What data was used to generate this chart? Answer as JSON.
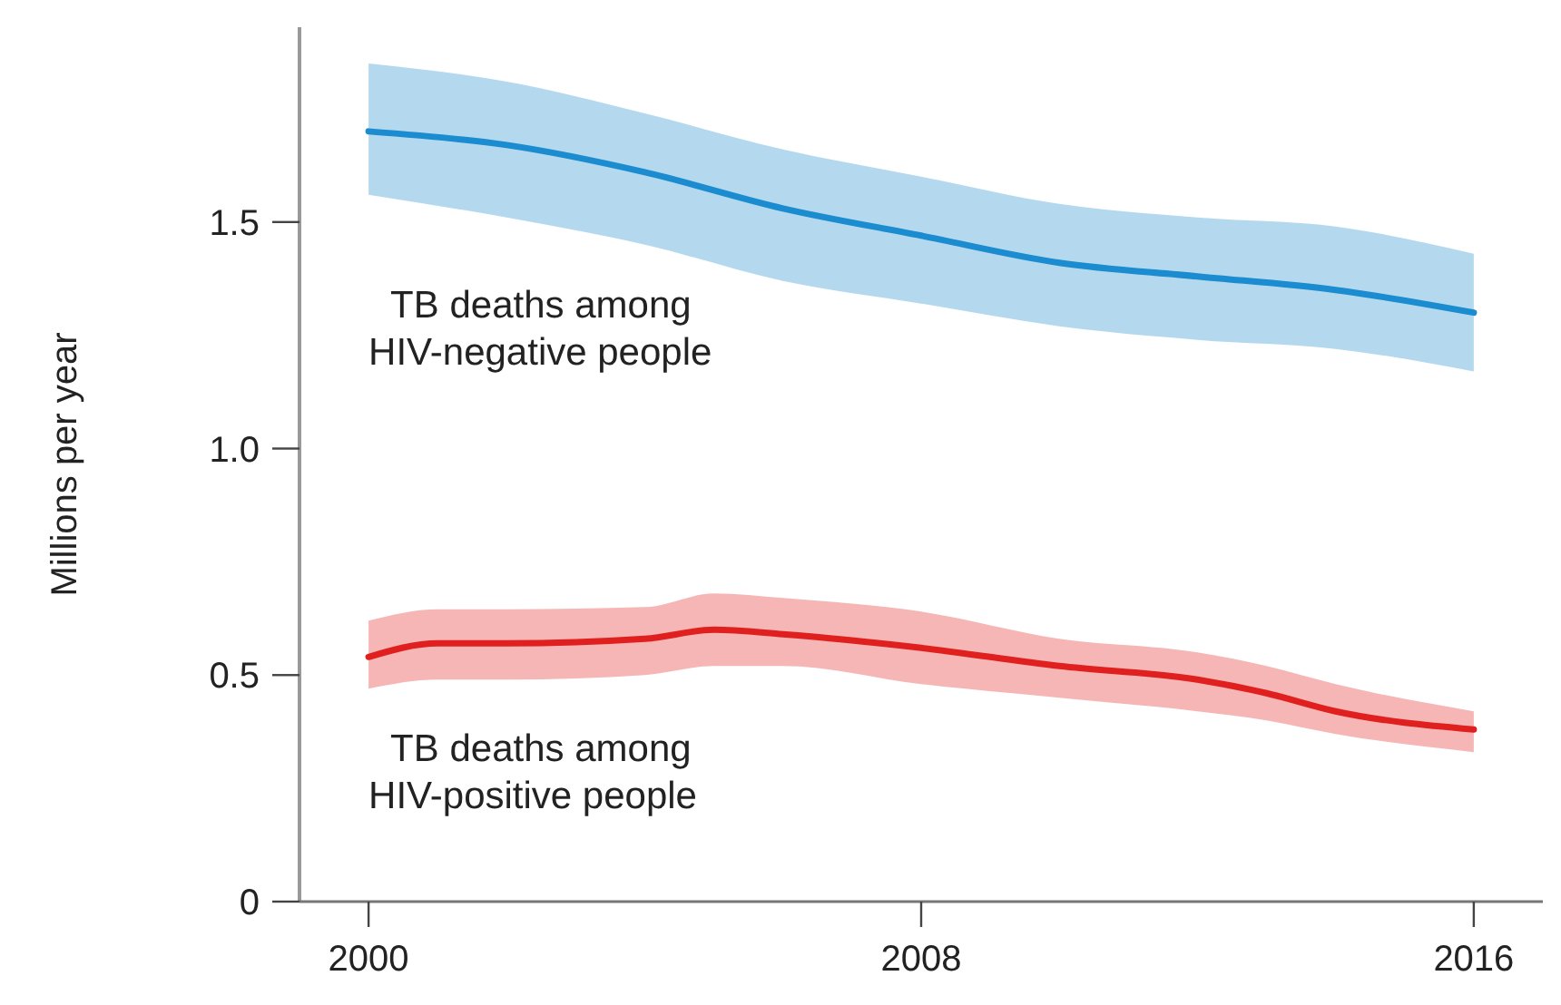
{
  "chart_data": {
    "type": "line",
    "ylabel": "Millions per year",
    "xlim": [
      1999,
      2017
    ],
    "xticks": [
      2000,
      2008,
      2016
    ],
    "ylim": [
      0,
      1.93
    ],
    "yticks": [
      0,
      {
        "value": 0.5,
        "label": "0.5"
      },
      {
        "value": 1,
        "label": "1.0"
      },
      {
        "value": 1.5,
        "label": "1.5"
      }
    ],
    "marker": "none",
    "line_style": "solid",
    "series": [
      {
        "name": "TB deaths among HIV-negative people",
        "color": "#1a8ccf",
        "x": [
          2000,
          2002,
          2004,
          2006,
          2008,
          2010,
          2012,
          2014,
          2016
        ],
        "values": [
          1.7,
          1.67,
          1.61,
          1.53,
          1.47,
          1.41,
          1.38,
          1.35,
          1.3
        ],
        "upper": [
          1.85,
          1.81,
          1.74,
          1.66,
          1.6,
          1.54,
          1.51,
          1.49,
          1.43
        ],
        "lower": [
          1.56,
          1.51,
          1.45,
          1.37,
          1.32,
          1.27,
          1.24,
          1.22,
          1.17
        ]
      },
      {
        "name": "TB deaths among HIV-positive people",
        "color": "#e0201e",
        "x": [
          2000,
          2001,
          2002,
          2004,
          2005,
          2006,
          2008,
          2010,
          2012,
          2013,
          2014,
          2016
        ],
        "values": [
          0.54,
          0.57,
          0.57,
          0.58,
          0.6,
          0.59,
          0.56,
          0.52,
          0.49,
          0.46,
          0.42,
          0.38
        ],
        "upper": [
          0.62,
          0.645,
          0.645,
          0.65,
          0.68,
          0.67,
          0.64,
          0.58,
          0.55,
          0.52,
          0.48,
          0.42
        ],
        "lower": [
          0.47,
          0.49,
          0.49,
          0.5,
          0.52,
          0.52,
          0.48,
          0.45,
          0.42,
          0.4,
          0.37,
          0.33
        ]
      }
    ]
  }
}
